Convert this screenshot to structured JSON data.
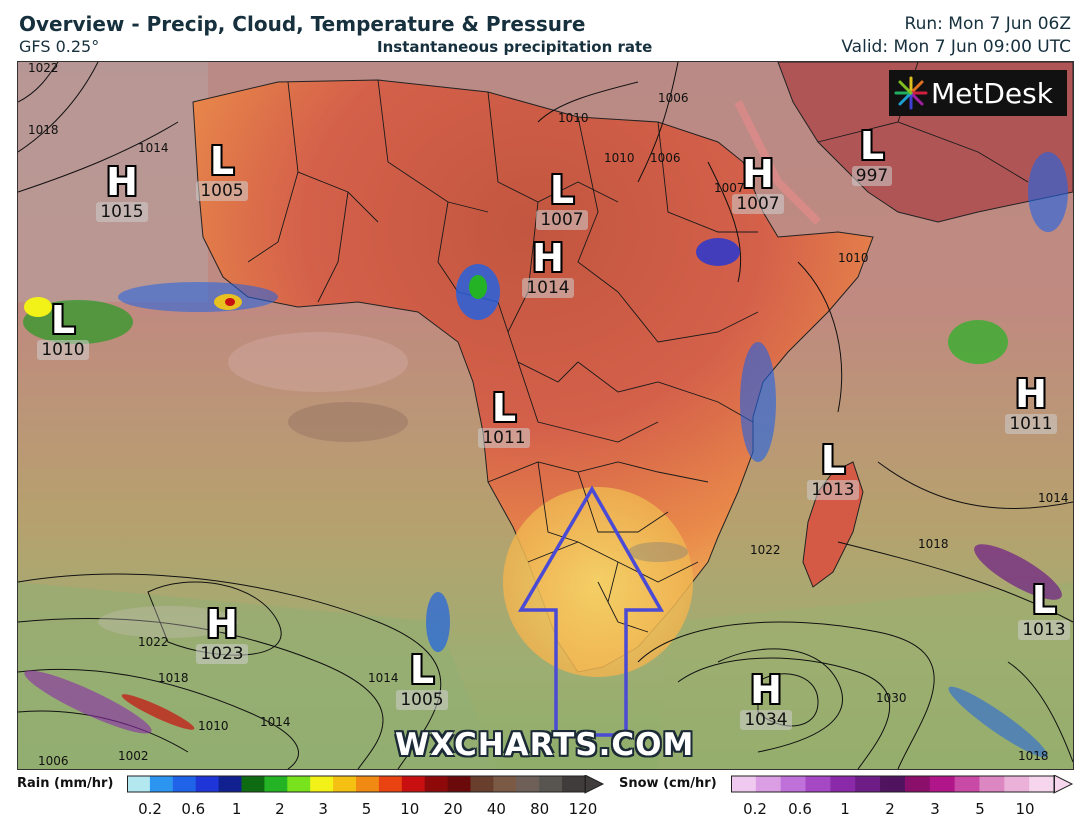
{
  "header": {
    "title": "Overview - Precip, Cloud, Temperature & Pressure",
    "model": "GFS 0.25°",
    "subtitle": "Instantaneous precipitation rate",
    "run": "Run: Mon 7 Jun 06Z",
    "valid": "Valid: Mon 7 Jun 09:00 UTC"
  },
  "logo": {
    "text": "MetDesk"
  },
  "watermark": "WXCHARTS.COM",
  "pressure_systems": [
    {
      "type": "H",
      "value": "1015"
    },
    {
      "type": "L",
      "value": "1005"
    },
    {
      "type": "L",
      "value": "1007"
    },
    {
      "type": "H",
      "value": "1007"
    },
    {
      "type": "L",
      "value": "997"
    },
    {
      "type": "H",
      "value": "1014"
    },
    {
      "type": "L",
      "value": "1010"
    },
    {
      "type": "L",
      "value": "1011"
    },
    {
      "type": "H",
      "value": "1011"
    },
    {
      "type": "L",
      "value": "1013"
    },
    {
      "type": "L",
      "value": "1013"
    },
    {
      "type": "H",
      "value": "1023"
    },
    {
      "type": "L",
      "value": "1005"
    },
    {
      "type": "H",
      "value": "1034"
    }
  ],
  "isobar_labels": [
    "1022",
    "1018",
    "1014",
    "1014",
    "1010",
    "1006",
    "1006",
    "1010",
    "1007",
    "1022",
    "1018",
    "1014",
    "1018",
    "1030",
    "1022",
    "1018",
    "1014",
    "1010",
    "1006",
    "1002",
    "1010"
  ],
  "legend": {
    "rain": {
      "title": "Rain (mm/hr)",
      "ticks": [
        "0.2",
        "0.6",
        "1",
        "2",
        "3",
        "5",
        "10",
        "20",
        "40",
        "80",
        "120"
      ],
      "colors": [
        "#b3e8f0",
        "#2c95f0",
        "#1f63e8",
        "#1e36d8",
        "#11208f",
        "#0e6b12",
        "#24b324",
        "#78e21c",
        "#f2f218",
        "#f4c113",
        "#f08a12",
        "#e84311",
        "#c81010",
        "#8e0a0a",
        "#6a0a0a",
        "#673f2c",
        "#7a5a44",
        "#6e6058",
        "#585450",
        "#3f3c3b"
      ]
    },
    "snow": {
      "title": "Snow (cm/hr)",
      "ticks": [
        "0.2",
        "0.6",
        "1",
        "2",
        "3",
        "5",
        "10"
      ],
      "colors": [
        "#f0c9f0",
        "#db9ee4",
        "#c070d9",
        "#a647c4",
        "#8a2aa8",
        "#6e1c86",
        "#4f1360",
        "#8a0f6a",
        "#b0168a",
        "#c84aa6",
        "#dc86c2",
        "#ebb1d8",
        "#f5d6ec"
      ]
    }
  }
}
